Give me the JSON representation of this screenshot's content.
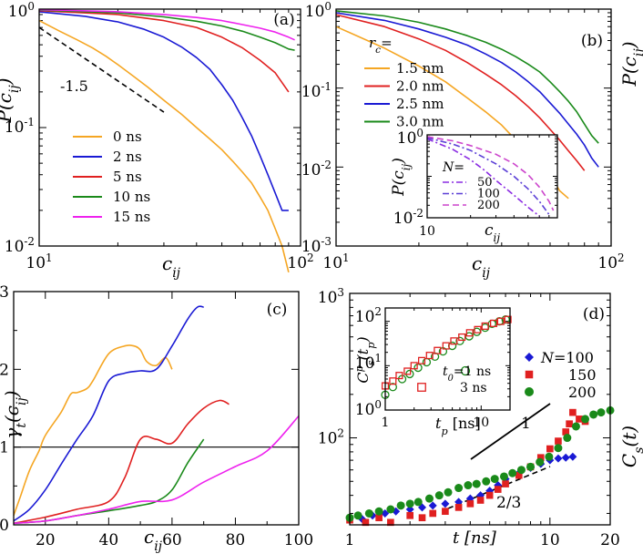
{
  "panels": {
    "a": {
      "tag": "(a)",
      "ylabel": "P(c",
      "ylabel_sub": "ij",
      "ylabel_end": ")",
      "xlabel": "c",
      "xlabel_sub": "ij",
      "xticks": [
        {
          "b": "10",
          "e": "1"
        },
        {
          "b": "10",
          "e": "2"
        }
      ],
      "yticks": [
        {
          "b": "10",
          "e": "0"
        },
        {
          "b": "10",
          "e": "-1"
        },
        {
          "b": "10",
          "e": "-2"
        }
      ],
      "slope_label": "-1.5"
    },
    "b": {
      "tag": "(b)",
      "ylabel": "P(c",
      "ylabel_sub": "ij",
      "ylabel_end": ")",
      "xlabel": "c",
      "xlabel_sub": "ij",
      "legend_title": "r",
      "legend_title_sub": "c",
      "legend_title_end": "=",
      "xticks": [
        {
          "b": "10",
          "e": "1"
        },
        {
          "b": "10",
          "e": "2"
        }
      ],
      "yticks": [
        {
          "b": "10",
          "e": "0"
        },
        {
          "b": "10",
          "e": "-1"
        },
        {
          "b": "10",
          "e": "-2"
        },
        {
          "b": "10",
          "e": "-3"
        }
      ],
      "inset": {
        "ylabel": "P(c",
        "ylabel_sub": "ij",
        "ylabel_end": ")",
        "xlabel": "c",
        "xlabel_sub": "ij",
        "legend_title": "N=",
        "xtick": "10",
        "yticks": [
          {
            "b": "10",
            "e": "0"
          },
          {
            "b": "10",
            "e": "-2"
          }
        ]
      }
    },
    "c": {
      "tag": "(c)",
      "ylabel": "γ",
      "ylabel_sub": "t",
      "ylabel_mid": "(c",
      "ylabel_sub2": "ij",
      "ylabel_end": ")",
      "xlabel": "c",
      "xlabel_sub": "ij",
      "xticks": [
        "20",
        "40",
        "60",
        "80",
        "100"
      ],
      "yticks": [
        "0",
        "1",
        "2",
        "3"
      ]
    },
    "d": {
      "tag": "(d)",
      "ylabel": "C",
      "ylabel_sub": "s",
      "ylabel_end": "(t)",
      "xlabel": "t [ns]",
      "xticks": [
        "1",
        "10",
        "20"
      ],
      "yticks": [
        {
          "b": "10",
          "e": "2"
        },
        {
          "b": "10",
          "e": "3"
        }
      ],
      "slope1": "1",
      "slope2": "2/3",
      "legend_prefix": "N=",
      "inset": {
        "ylabel": "C",
        "ylabel_sup": "p",
        "ylabel_sub": "s",
        "ylabel_end": "(t",
        "ylabel_sub2": "p",
        "ylabel_end2": ")",
        "xlabel": "t",
        "xlabel_sub": "p",
        "xlabel_end": " [ns]",
        "xticks": [
          "1",
          "10"
        ],
        "yticks": [
          {
            "b": "10",
            "e": "0"
          },
          {
            "b": "10",
            "e": "1"
          },
          {
            "b": "10",
            "e": "2"
          }
        ],
        "legend": [
          {
            "label": "t",
            "sub": "0",
            "rest": "=1 ns"
          },
          {
            "label": "3 ns"
          }
        ]
      }
    }
  },
  "chart_data": [
    {
      "panel": "a",
      "type": "line",
      "xscale": "log",
      "yscale": "log",
      "xlim": [
        10,
        100
      ],
      "ylim": [
        0.01,
        1
      ],
      "xlabel": "c_ij",
      "ylabel": "P(c_ij)",
      "legend_location": "lower-left",
      "reference_line": {
        "slope": -1.5,
        "label": "-1.5",
        "x": [
          10,
          30
        ],
        "y": [
          0.7,
          0.135
        ]
      },
      "series": [
        {
          "name": "0 ns",
          "color": "#f5a623",
          "x": [
            10,
            12,
            14,
            16,
            18,
            20,
            23,
            26,
            30,
            35,
            40,
            45,
            50,
            55,
            60,
            65,
            70,
            75,
            80,
            85,
            90
          ],
          "y": [
            0.8,
            0.65,
            0.55,
            0.47,
            0.4,
            0.34,
            0.27,
            0.22,
            0.17,
            0.13,
            0.1,
            0.08,
            0.065,
            0.052,
            0.042,
            0.034,
            0.026,
            0.02,
            0.014,
            0.01,
            0.006
          ]
        },
        {
          "name": "2 ns",
          "color": "#1a1ad4",
          "x": [
            10,
            15,
            20,
            25,
            30,
            35,
            40,
            45,
            50,
            55,
            60,
            65,
            70,
            75,
            80,
            85,
            90
          ],
          "y": [
            0.95,
            0.87,
            0.78,
            0.68,
            0.58,
            0.48,
            0.39,
            0.31,
            0.23,
            0.17,
            0.12,
            0.085,
            0.058,
            0.04,
            0.028,
            0.02,
            0.02
          ]
        },
        {
          "name": "5 ns",
          "color": "#e02020",
          "x": [
            10,
            20,
            30,
            40,
            50,
            60,
            70,
            80,
            90
          ],
          "y": [
            0.97,
            0.9,
            0.8,
            0.7,
            0.58,
            0.47,
            0.37,
            0.29,
            0.2
          ]
        },
        {
          "name": "10 ns",
          "color": "#1a8a1a",
          "x": [
            10,
            20,
            30,
            40,
            50,
            60,
            70,
            80,
            90,
            95
          ],
          "y": [
            0.98,
            0.93,
            0.86,
            0.79,
            0.72,
            0.65,
            0.58,
            0.52,
            0.46,
            0.45
          ]
        },
        {
          "name": "15 ns",
          "color": "#ee22ee",
          "x": [
            10,
            20,
            30,
            40,
            50,
            60,
            70,
            80,
            90,
            95
          ],
          "y": [
            0.99,
            0.95,
            0.9,
            0.85,
            0.8,
            0.74,
            0.69,
            0.64,
            0.58,
            0.55
          ]
        }
      ]
    },
    {
      "panel": "b",
      "type": "line",
      "xscale": "log",
      "yscale": "log",
      "xlim": [
        10,
        100
      ],
      "ylim": [
        0.001,
        1
      ],
      "xlabel": "c_ij",
      "ylabel": "P(c_ij)",
      "legend_location": "upper-left",
      "series": [
        {
          "name": "1.5 nm",
          "color": "#f5a623",
          "x": [
            10,
            15,
            20,
            25,
            30,
            35,
            40,
            45,
            50,
            55,
            60,
            65,
            70
          ],
          "y": [
            0.6,
            0.32,
            0.19,
            0.12,
            0.075,
            0.05,
            0.034,
            0.022,
            0.016,
            0.012,
            0.008,
            0.005,
            0.004
          ]
        },
        {
          "name": "2.0 nm",
          "color": "#e02020",
          "x": [
            10,
            15,
            20,
            25,
            30,
            35,
            40,
            45,
            50,
            55,
            60,
            65,
            70,
            75,
            80
          ],
          "y": [
            0.85,
            0.6,
            0.42,
            0.3,
            0.21,
            0.15,
            0.11,
            0.08,
            0.058,
            0.042,
            0.03,
            0.022,
            0.016,
            0.012,
            0.009
          ]
        },
        {
          "name": "2.5 nm",
          "color": "#1a1ad4",
          "x": [
            10,
            15,
            20,
            25,
            30,
            35,
            40,
            45,
            50,
            55,
            60,
            65,
            70,
            75,
            80,
            85,
            90
          ],
          "y": [
            0.9,
            0.72,
            0.56,
            0.44,
            0.35,
            0.27,
            0.21,
            0.16,
            0.12,
            0.09,
            0.065,
            0.048,
            0.035,
            0.026,
            0.019,
            0.013,
            0.01
          ]
        },
        {
          "name": "3.0 nm",
          "color": "#1a8a1a",
          "x": [
            10,
            15,
            20,
            25,
            30,
            35,
            40,
            45,
            50,
            55,
            60,
            65,
            70,
            75,
            80,
            85,
            90
          ],
          "y": [
            0.95,
            0.82,
            0.68,
            0.56,
            0.46,
            0.38,
            0.31,
            0.25,
            0.2,
            0.16,
            0.12,
            0.09,
            0.068,
            0.05,
            0.035,
            0.025,
            0.02
          ]
        }
      ],
      "inset": {
        "type": "line",
        "xscale": "log",
        "yscale": "log",
        "xlim": [
          10,
          80
        ],
        "ylim": [
          0.01,
          1
        ],
        "legend_title": "N=",
        "series": [
          {
            "name": "50",
            "color": "#8a2be2",
            "style": "dash-dot",
            "x": [
              10,
              15,
              20,
              25,
              30,
              40,
              50,
              60
            ],
            "y": [
              0.8,
              0.45,
              0.25,
              0.14,
              0.08,
              0.035,
              0.018,
              0.011
            ]
          },
          {
            "name": "100",
            "color": "#5b3fd6",
            "style": "dash-dot",
            "x": [
              10,
              15,
              20,
              30,
              40,
              50,
              60,
              70
            ],
            "y": [
              0.85,
              0.6,
              0.42,
              0.2,
              0.1,
              0.05,
              0.025,
              0.012
            ]
          },
          {
            "name": "200",
            "color": "#cc44cc",
            "style": "dash",
            "x": [
              10,
              15,
              20,
              30,
              40,
              50,
              60,
              70,
              75
            ],
            "y": [
              0.9,
              0.72,
              0.55,
              0.34,
              0.2,
              0.11,
              0.055,
              0.025,
              0.015
            ]
          }
        ]
      }
    },
    {
      "panel": "c",
      "type": "line",
      "xscale": "linear",
      "yscale": "linear",
      "xlim": [
        10,
        100
      ],
      "ylim": [
        0,
        3
      ],
      "xlabel": "c_ij",
      "ylabel": "γ_t(c_ij)",
      "reference_line": {
        "y": 1
      },
      "series": [
        {
          "name": "0 ns",
          "color": "#f5a623",
          "x": [
            10,
            12,
            15,
            18,
            20,
            25,
            28,
            30,
            33,
            35,
            40,
            45,
            48,
            50,
            52,
            55,
            58,
            60
          ],
          "y": [
            0.12,
            0.35,
            0.7,
            0.95,
            1.15,
            1.45,
            1.68,
            1.7,
            1.75,
            1.85,
            2.2,
            2.3,
            2.3,
            2.25,
            2.1,
            2.05,
            2.15,
            2.0
          ]
        },
        {
          "name": "2 ns",
          "color": "#1a1ad4",
          "x": [
            10,
            15,
            20,
            25,
            30,
            35,
            40,
            45,
            50,
            55,
            60,
            65,
            68,
            70
          ],
          "y": [
            0.05,
            0.2,
            0.45,
            0.78,
            1.1,
            1.4,
            1.85,
            1.95,
            1.98,
            2.0,
            2.3,
            2.65,
            2.8,
            2.8
          ]
        },
        {
          "name": "5 ns",
          "color": "#e02020",
          "x": [
            10,
            20,
            30,
            40,
            45,
            50,
            55,
            60,
            65,
            70,
            75,
            78
          ],
          "y": [
            0.02,
            0.1,
            0.2,
            0.3,
            0.6,
            1.1,
            1.1,
            1.05,
            1.3,
            1.5,
            1.6,
            1.55
          ]
        },
        {
          "name": "10 ns",
          "color": "#1a8a1a",
          "x": [
            10,
            20,
            30,
            40,
            50,
            55,
            60,
            65,
            70
          ],
          "y": [
            0.02,
            0.05,
            0.12,
            0.18,
            0.25,
            0.3,
            0.45,
            0.8,
            1.1
          ]
        },
        {
          "name": "15 ns",
          "color": "#ee22ee",
          "x": [
            10,
            20,
            30,
            40,
            50,
            60,
            70,
            80,
            90,
            100
          ],
          "y": [
            0.02,
            0.05,
            0.12,
            0.2,
            0.3,
            0.32,
            0.55,
            0.75,
            0.95,
            1.4
          ]
        }
      ]
    },
    {
      "panel": "d",
      "type": "scatter",
      "xscale": "log",
      "yscale": "log",
      "xlim": [
        1,
        20
      ],
      "ylim": [
        25,
        1000
      ],
      "xlabel": "t [ns]",
      "ylabel": "C_s(t)",
      "reference_lines": [
        {
          "slope": 1,
          "label": "1"
        },
        {
          "slope": 0.667,
          "label": "2/3"
        }
      ],
      "series": [
        {
          "name": "N=100",
          "color": "#1a1ad4",
          "marker": "diamond",
          "x": [
            1,
            1.15,
            1.3,
            1.5,
            1.7,
            2,
            2.3,
            2.6,
            3,
            3.5,
            4,
            4.5,
            5,
            5.5,
            6,
            7,
            8,
            9,
            10,
            11,
            12,
            13
          ],
          "y": [
            28,
            27.5,
            29,
            30,
            31,
            32,
            33,
            34,
            35,
            36,
            38,
            40,
            43,
            47,
            52,
            57,
            62,
            66,
            70,
            72,
            73,
            74
          ]
        },
        {
          "name": "N=150",
          "color": "#e02020",
          "marker": "square",
          "x": [
            1,
            1.2,
            1.4,
            1.6,
            2,
            2.3,
            2.6,
            3,
            3.5,
            4,
            4.5,
            5,
            5.5,
            6,
            7,
            8,
            9,
            10,
            11,
            12,
            12.5,
            13,
            14,
            15
          ],
          "y": [
            27,
            26,
            28,
            26,
            29,
            28,
            30,
            31,
            33,
            35,
            37,
            40,
            44,
            48,
            55,
            63,
            73,
            84,
            95,
            110,
            125,
            150,
            135,
            130
          ]
        },
        {
          "name": "N=200",
          "color": "#1a8a1a",
          "marker": "circle",
          "x": [
            1,
            1.1,
            1.25,
            1.4,
            1.6,
            1.8,
            2,
            2.2,
            2.5,
            2.8,
            3.1,
            3.5,
            3.9,
            4.3,
            4.8,
            5.3,
            5.9,
            6.5,
            7.2,
            8,
            8.9,
            9.9,
            11,
            12.2,
            13.5,
            15,
            16.5,
            18,
            20
          ],
          "y": [
            28,
            29,
            30,
            31,
            32,
            34,
            35,
            36,
            38,
            40,
            42,
            45,
            47,
            48,
            50,
            52,
            54,
            57,
            60,
            63,
            68,
            74,
            85,
            100,
            120,
            135,
            145,
            150,
            155
          ]
        }
      ],
      "inset": {
        "type": "scatter",
        "xscale": "log",
        "yscale": "log",
        "xlim": [
          1,
          20
        ],
        "ylim": [
          1,
          200
        ],
        "series": [
          {
            "name": "t0=1 ns",
            "color": "#1a8a1a",
            "marker": "open-circle",
            "x": [
              1,
              1.2,
              1.5,
              1.8,
              2.2,
              2.7,
              3.3,
              4,
              5,
              6,
              7.5,
              9,
              11,
              13,
              15.5,
              18
            ],
            "y": [
              2.2,
              3.3,
              5,
              6.5,
              9,
              12,
              16,
              21,
              28,
              36,
              46,
              58,
              72,
              88,
              100,
              110
            ]
          },
          {
            "name": "3 ns",
            "color": "#e02020",
            "marker": "open-square",
            "x": [
              1,
              1.2,
              1.4,
              1.7,
              2,
              2.4,
              2.9,
              3.5,
              4.3,
              5.2,
              6.3,
              7.6,
              9.2,
              11,
              13.5,
              16,
              19
            ],
            "y": [
              3.5,
              4.5,
              6,
              7.5,
              10,
              13,
              17,
              22,
              28,
              36,
              44,
              55,
              65,
              78,
              90,
              100,
              110
            ]
          }
        ]
      }
    }
  ]
}
